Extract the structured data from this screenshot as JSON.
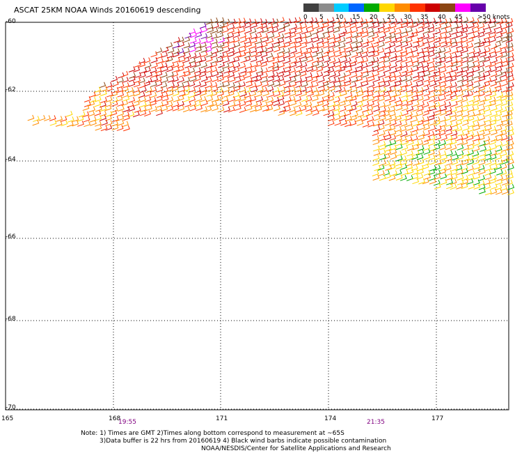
{
  "header": {
    "title": "ASCAT 25KM NOAA Winds 20160619 descending"
  },
  "legend": {
    "unit": ">50 knots",
    "labels": [
      "0",
      "5",
      "10",
      "15",
      "20",
      "25",
      "30",
      "35",
      "40",
      "45",
      ">50 knots"
    ],
    "colors": [
      "#404040",
      "#8c8c8c",
      "#00ccff",
      "#0066ff",
      "#00aa00",
      "#ffd700",
      "#ff8c00",
      "#ff3300",
      "#cc0000",
      "#8b4513",
      "#ff00ff",
      "#6600aa"
    ]
  },
  "axes": {
    "lat_labels": [
      "-60",
      "-62",
      "-64",
      "-66",
      "-68",
      "-70"
    ],
    "lon_labels": [
      "165",
      "168",
      "171",
      "174",
      "177"
    ]
  },
  "times": [
    "19:55",
    "21:35"
  ],
  "notes": {
    "line1": "Note: 1) Times are GMT 2)Times along bottom correspond to measurement at ~65S",
    "line2": "3)Data buffer is 22 hrs from 20160619 4) Black wind barbs indicate possible contamination",
    "line3": "NOAA/NESDIS/Center for Satellite Applications and Research"
  }
}
